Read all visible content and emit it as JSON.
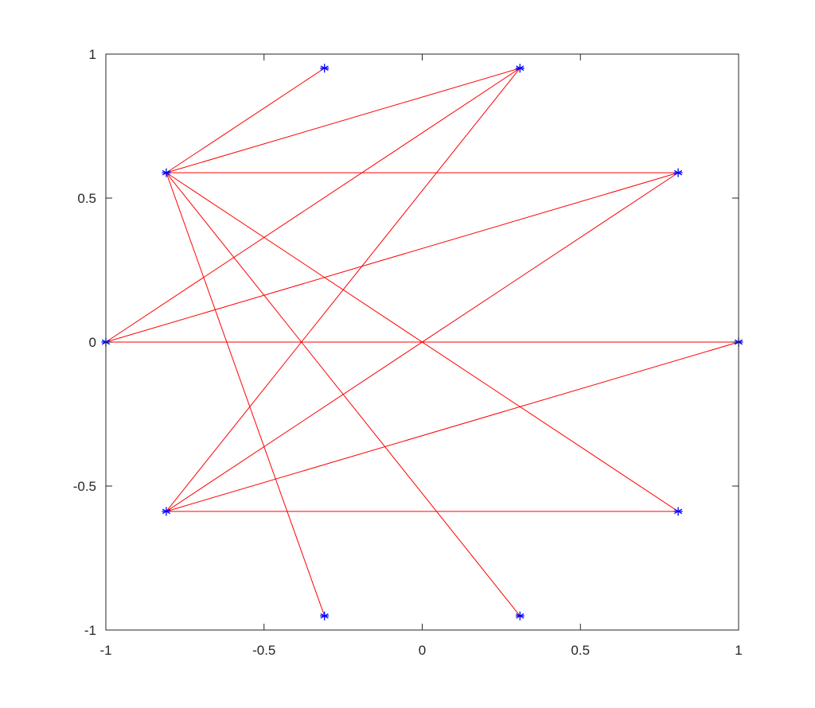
{
  "chart_data": {
    "type": "scatter",
    "title": "",
    "xlabel": "",
    "ylabel": "",
    "xlim": [
      -1,
      1
    ],
    "ylim": [
      -1,
      1
    ],
    "grid": false,
    "xticks": [
      -1,
      -0.5,
      0,
      0.5,
      1
    ],
    "yticks": [
      -1,
      -0.5,
      0,
      0.5,
      1
    ],
    "xtick_labels": [
      "-1",
      "-0.5",
      "0",
      "0.5",
      "1"
    ],
    "ytick_labels": [
      "-1",
      "-0.5",
      "0",
      "0.5",
      "1"
    ],
    "points": [
      {
        "x": 1,
        "y": 0
      },
      {
        "x": 0.809,
        "y": 0.588
      },
      {
        "x": 0.309,
        "y": 0.951
      },
      {
        "x": -0.309,
        "y": 0.951
      },
      {
        "x": -0.809,
        "y": 0.588
      },
      {
        "x": -1,
        "y": 0
      },
      {
        "x": -0.809,
        "y": -0.588
      },
      {
        "x": -0.309,
        "y": -0.951
      },
      {
        "x": 0.309,
        "y": -0.951
      },
      {
        "x": 0.809,
        "y": -0.588
      }
    ],
    "edges": [
      [
        4,
        3
      ],
      [
        4,
        2
      ],
      [
        4,
        1
      ],
      [
        4,
        7
      ],
      [
        4,
        8
      ],
      [
        4,
        9
      ],
      [
        5,
        0
      ],
      [
        5,
        1
      ],
      [
        5,
        2
      ],
      [
        6,
        2
      ],
      [
        6,
        1
      ],
      [
        6,
        0
      ],
      [
        6,
        9
      ]
    ],
    "colors": {
      "marker": "#0000ff",
      "edge": "#ff0000",
      "axis": "#262626"
    }
  }
}
